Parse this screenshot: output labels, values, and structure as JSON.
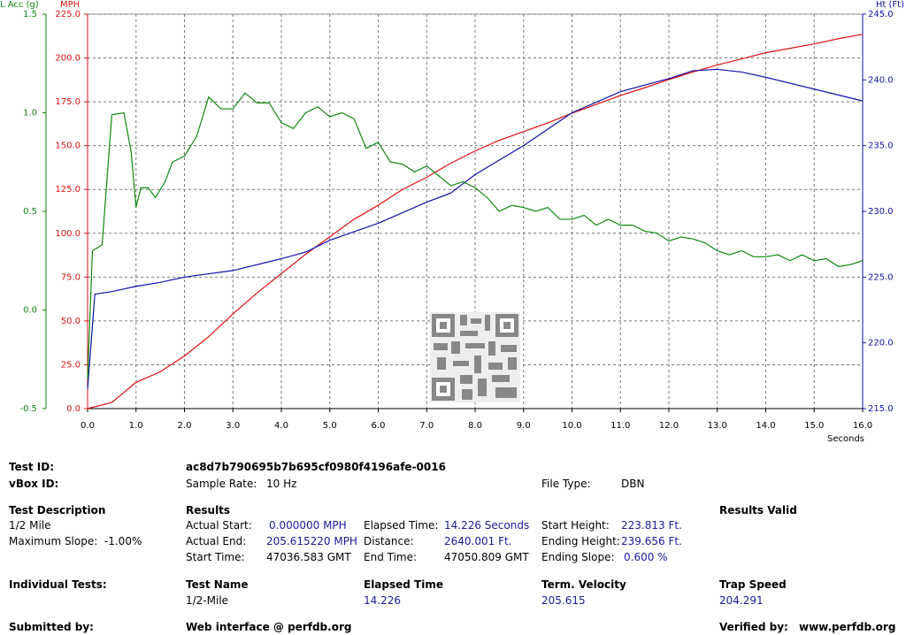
{
  "chart_data": {
    "type": "line",
    "x_label": "Seconds",
    "y_label": "MPH",
    "y2_label": "Ht (Ft)",
    "y3_label": "L Acc (g)",
    "xlim": [
      0,
      16
    ],
    "xticks": [
      {
        "value": 0,
        "label": "0.0"
      },
      {
        "value": 1,
        "label": "1.0"
      },
      {
        "value": 2,
        "label": "2.0"
      },
      {
        "value": 3,
        "label": "3.0"
      },
      {
        "value": 4,
        "label": "4.0"
      },
      {
        "value": 5,
        "label": "5.0"
      },
      {
        "value": 6,
        "label": "6.0"
      },
      {
        "value": 7,
        "label": "7.0"
      },
      {
        "value": 8,
        "label": "8.0"
      },
      {
        "value": 9,
        "label": "9.0"
      },
      {
        "value": 10,
        "label": "10.0"
      },
      {
        "value": 11,
        "label": "11.0"
      },
      {
        "value": 12,
        "label": "12.0"
      },
      {
        "value": 13,
        "label": "13.0"
      },
      {
        "value": 14,
        "label": "14.0"
      },
      {
        "value": 15,
        "label": "15.0"
      },
      {
        "value": 16,
        "label": "16.0"
      }
    ],
    "ylim": [
      0,
      225
    ],
    "yticks": [
      {
        "value": 0,
        "label": "0.0"
      },
      {
        "value": 25,
        "label": "25.0"
      },
      {
        "value": 50,
        "label": "50.0"
      },
      {
        "value": 75,
        "label": "75.0"
      },
      {
        "value": 100,
        "label": "100.0"
      },
      {
        "value": 125,
        "label": "125.0"
      },
      {
        "value": 150,
        "label": "150.0"
      },
      {
        "value": 175,
        "label": "175.0"
      },
      {
        "value": 200,
        "label": "200.0"
      },
      {
        "value": 225,
        "label": "225.0"
      }
    ],
    "y2lim": [
      215,
      245
    ],
    "y2ticks": [
      {
        "value": 215,
        "label": "215.0"
      },
      {
        "value": 220,
        "label": "220.0"
      },
      {
        "value": 225,
        "label": "225.0"
      },
      {
        "value": 230,
        "label": "230.0"
      },
      {
        "value": 235,
        "label": "235.0"
      },
      {
        "value": 240,
        "label": "240.0"
      },
      {
        "value": 245,
        "label": "245.0"
      }
    ],
    "y3lim": [
      -0.5,
      1.5
    ],
    "y3ticks": [
      {
        "value": -0.5,
        "label": "-0.5"
      },
      {
        "value": 0,
        "label": "0.0"
      },
      {
        "value": 0.5,
        "label": "0.5"
      },
      {
        "value": 1,
        "label": "1.0"
      },
      {
        "value": 1.5,
        "label": "1.5"
      }
    ],
    "grid": true,
    "series": [
      {
        "color": "#dd1111",
        "axis": "y",
        "x": [
          0,
          0.5,
          1,
          1.5,
          2,
          2.5,
          3,
          3.5,
          4,
          4.5,
          5,
          5.5,
          6,
          6.5,
          7,
          7.5,
          8,
          8.5,
          9,
          9.5,
          10,
          10.5,
          11,
          11.5,
          12,
          12.5,
          13,
          13.5,
          14,
          14.5,
          15,
          15.5,
          16
        ],
        "values": [
          0,
          3.5,
          15,
          21,
          30,
          41,
          54,
          66,
          77,
          88,
          98,
          108,
          116,
          125,
          132,
          140,
          147,
          153,
          158,
          163,
          168.5,
          173.5,
          178.6,
          183,
          187.7,
          192,
          196,
          199.5,
          203,
          205.5,
          208,
          211,
          213.5
        ]
      },
      {
        "color": "#1111aa",
        "axis": "y2",
        "x": [
          0,
          0.15,
          0.5,
          1,
          1.5,
          2,
          3,
          4,
          4.5,
          5,
          6,
          7,
          7.5,
          8,
          9,
          10,
          11,
          12,
          12.5,
          13,
          13.5,
          14,
          15,
          16
        ],
        "values": [
          216.5,
          223.7,
          223.9,
          224.3,
          224.6,
          225,
          225.5,
          226.4,
          226.9,
          227.8,
          229.1,
          230.7,
          231.4,
          232.8,
          235,
          237.5,
          239.1,
          240.1,
          240.7,
          240.8,
          240.6,
          240.2,
          239.3,
          238.4
        ]
      },
      {
        "color": "#118811",
        "axis": "y3",
        "x": [
          0,
          0.1,
          0.3,
          0.5,
          0.75,
          0.9,
          1,
          1.1,
          1.25,
          1.4,
          1.6,
          1.75,
          2,
          2.25,
          2.5,
          2.75,
          3,
          3.25,
          3.5,
          3.75,
          4,
          4.25,
          4.5,
          4.75,
          5,
          5.25,
          5.5,
          5.75,
          6,
          6.25,
          6.5,
          6.75,
          7,
          7.25,
          7.5,
          7.75,
          8,
          8.25,
          8.5,
          8.75,
          9,
          9.25,
          9.5,
          9.75,
          10,
          10.25,
          10.5,
          10.75,
          11,
          11.25,
          11.5,
          11.75,
          12,
          12.25,
          12.5,
          12.75,
          13,
          13.25,
          13.5,
          13.75,
          14,
          14.25,
          14.5,
          14.75,
          15,
          15.25,
          15.5,
          15.75,
          16
        ],
        "values": [
          -0.35,
          0.3,
          0.33,
          0.99,
          1.0,
          0.8,
          0.52,
          0.62,
          0.62,
          0.57,
          0.65,
          0.75,
          0.78,
          0.88,
          1.08,
          1.02,
          1.02,
          1.1,
          1.05,
          1.05,
          0.95,
          0.92,
          1.0,
          1.03,
          0.98,
          1.0,
          0.97,
          0.82,
          0.85,
          0.75,
          0.74,
          0.7,
          0.73,
          0.68,
          0.63,
          0.65,
          0.62,
          0.57,
          0.5,
          0.53,
          0.52,
          0.5,
          0.52,
          0.46,
          0.46,
          0.48,
          0.43,
          0.46,
          0.43,
          0.43,
          0.4,
          0.39,
          0.35,
          0.37,
          0.36,
          0.34,
          0.3,
          0.28,
          0.3,
          0.27,
          0.27,
          0.28,
          0.25,
          0.28,
          0.25,
          0.26,
          0.22,
          0.23,
          0.25
        ]
      }
    ]
  },
  "report": {
    "test_id_label": "Test ID:",
    "test_id": "ac8d7b790695b7b695cf0980f4196afe-0016",
    "vbox_id_label": "vBox ID:",
    "sample_rate_label": "Sample Rate:",
    "sample_rate": "10 Hz",
    "file_type_label": "File Type:",
    "file_type": "DBN",
    "test_description_label": "Test Description",
    "test_description": "1/2 Mile",
    "max_slope": "Maximum Slope:  -1.00%",
    "results_label": "Results",
    "results_valid": "Results Valid",
    "actual_start_label": "Actual Start:",
    "actual_start": "0.000000 MPH",
    "actual_end_label": "Actual End:",
    "actual_end": "205.615220 MPH",
    "start_time_label": "Start Time:",
    "start_time": "47036.583 GMT",
    "elapsed_time_label": "Elapsed Time:",
    "elapsed_time": "14.226 Seconds",
    "distance_label": "Distance:",
    "distance": "2640.001 Ft.",
    "end_time_label": "End Time:",
    "end_time": "47050.809 GMT",
    "start_height_label": "Start Height:",
    "start_height": "223.813 Ft.",
    "ending_height_label": "Ending Height:",
    "ending_height": "239.656 Ft.",
    "ending_slope_label": "Ending Slope:",
    "ending_slope": "0.600 %",
    "individual_tests_label": "Individual Tests:",
    "columns": [
      "Test Name",
      "Elapsed Time",
      "Term. Velocity",
      "Trap Speed"
    ],
    "row": [
      "1/2-Mile",
      "14.226",
      "205.615",
      "204.291"
    ],
    "submitted_by_label": "Submitted by:",
    "submitted_by": "Web interface @ perfdb.org",
    "verified_by_label": "Verified by:",
    "verified_by": "www.perfdb.org"
  }
}
